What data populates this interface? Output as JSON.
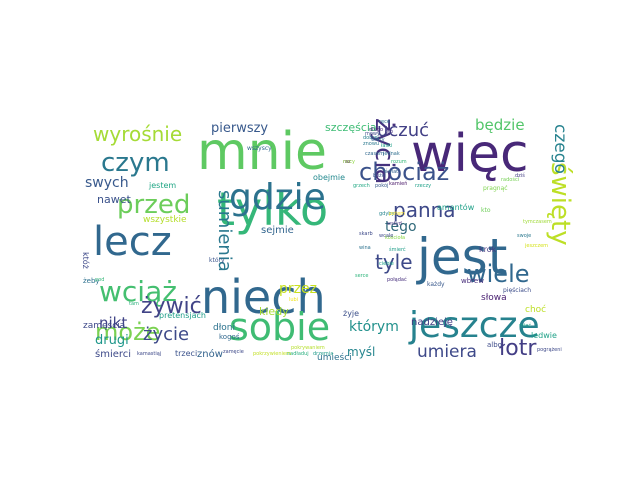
{
  "words": [
    {
      "text": "niech",
      "color": "#31688e"
    },
    {
      "text": "mnie",
      "color": "#5ec962"
    },
    {
      "text": "więc",
      "color": "#482878"
    },
    {
      "text": "jest",
      "color": "#31688e"
    },
    {
      "text": "tylko",
      "color": "#35b779"
    },
    {
      "text": "lecz",
      "color": "#31688e"
    },
    {
      "text": "gdzie",
      "color": "#2c728e"
    },
    {
      "text": "jeszcze",
      "color": "#26828e"
    },
    {
      "text": "sobie",
      "color": "#3fbc73"
    },
    {
      "text": "wciąż",
      "color": "#44bf70"
    },
    {
      "text": "czym",
      "color": "#2a788e"
    },
    {
      "text": "chociaż",
      "color": "#3b528b"
    },
    {
      "text": "życia",
      "color": "#46327e"
    },
    {
      "text": "wiele",
      "color": "#31688e"
    },
    {
      "text": "przed",
      "color": "#6ccd5a"
    },
    {
      "text": "może",
      "color": "#7ad151"
    },
    {
      "text": "panna",
      "color": "#3e4989"
    },
    {
      "text": "sumienia",
      "color": "#2a788e"
    },
    {
      "text": "święty",
      "color": "#bddf26"
    },
    {
      "text": "łotr",
      "color": "#433e85"
    },
    {
      "text": "wyrośnie",
      "color": "#a5db36"
    },
    {
      "text": "żywić",
      "color": "#414487"
    },
    {
      "text": "życie",
      "color": "#3e4a89"
    },
    {
      "text": "umiera",
      "color": "#3e4989"
    },
    {
      "text": "uczuć",
      "color": "#424086"
    },
    {
      "text": "czego",
      "color": "#26828e"
    },
    {
      "text": "będzie",
      "color": "#52c569"
    },
    {
      "text": "tyle",
      "color": "#3e4a89"
    },
    {
      "text": "nikt",
      "color": "#414487"
    },
    {
      "text": "przez",
      "color": "#c8e020"
    },
    {
      "text": "którym",
      "color": "#21918c"
    },
    {
      "text": "tego",
      "color": "#30697a"
    },
    {
      "text": "swych",
      "color": "#38598c"
    },
    {
      "text": "pierwszy",
      "color": "#38598c"
    },
    {
      "text": "drugi",
      "color": "#1f978b"
    },
    {
      "text": "myśl",
      "color": "#25858e"
    },
    {
      "text": "nawet",
      "color": "#3b528b"
    },
    {
      "text": "szczęścia",
      "color": "#3dbc74"
    },
    {
      "text": "kiedy",
      "color": "#a8db34"
    },
    {
      "text": "nadzieję",
      "color": "#433d84"
    },
    {
      "text": "zamęścia",
      "color": "#3e4989"
    },
    {
      "text": "śmierci",
      "color": "#3e4a89"
    },
    {
      "text": "sejmie",
      "color": "#32658e"
    },
    {
      "text": "umieści",
      "color": "#2d718e"
    },
    {
      "text": "znów",
      "color": "#33638d"
    },
    {
      "text": "słowa",
      "color": "#481f70"
    },
    {
      "text": "jestem",
      "color": "#21a685"
    },
    {
      "text": "amantów",
      "color": "#1fa088"
    },
    {
      "text": "pretensjach",
      "color": "#1f9e89"
    },
    {
      "text": "dłoni",
      "color": "#2c728e"
    },
    {
      "text": "obejmie",
      "color": "#23898e"
    },
    {
      "text": "choć",
      "color": "#bddf26"
    },
    {
      "text": "żyje",
      "color": "#3c4f8a"
    },
    {
      "text": "wszystkie",
      "color": "#b5de2b"
    },
    {
      "text": "krok",
      "color": "#453882"
    },
    {
      "text": "ledwie",
      "color": "#1fa187"
    },
    {
      "text": "trzeci",
      "color": "#3b528b"
    },
    {
      "text": "kogoś",
      "color": "#31688e"
    },
    {
      "text": "wszyscy",
      "color": "#31668e"
    },
    {
      "text": "któż",
      "color": "#3e4989"
    },
    {
      "text": "żeby",
      "color": "#2d708e"
    },
    {
      "text": "który",
      "color": "#3a548c"
    },
    {
      "text": "wbrew",
      "color": "#472d7b"
    },
    {
      "text": "każdy",
      "color": "#38588c"
    },
    {
      "text": "kto",
      "color": "#6ece58"
    },
    {
      "text": "pięściach",
      "color": "#3d4d8a"
    },
    {
      "text": "albo",
      "color": "#3e4c8a"
    },
    {
      "text": "pragnąć",
      "color": "#7fd34e"
    },
    {
      "text": "nadładuj",
      "color": "#29af7f"
    },
    {
      "text": "drzemia",
      "color": "#1f9a8a"
    },
    {
      "text": "połądać",
      "color": "#472f7d"
    },
    {
      "text": "rzeczy",
      "color": "#1fa088"
    },
    {
      "text": "raz",
      "color": "#440154"
    },
    {
      "text": "kamień",
      "color": "#481668"
    },
    {
      "text": "swoje",
      "color": "#2a788e"
    },
    {
      "text": "radości",
      "color": "#75d054"
    },
    {
      "text": "dobrej",
      "color": "#287c8e"
    },
    {
      "text": "tymczasem",
      "color": "#a0da39"
    },
    {
      "text": "jeszczem",
      "color": "#d5e21a"
    },
    {
      "text": "kościoła",
      "color": "#8bd646"
    },
    {
      "text": "lubi",
      "color": "#f1e51d"
    },
    {
      "text": "mieć",
      "color": "#1fa088"
    },
    {
      "text": "pod",
      "color": "#35b779"
    },
    {
      "text": "tam",
      "color": "#2db27d"
    },
    {
      "text": "ciebie",
      "color": "#1fa187"
    },
    {
      "text": "dziś",
      "color": "#433e85"
    },
    {
      "text": "jednak",
      "color": "#2e6e8e"
    },
    {
      "text": "oto",
      "color": "#46337f"
    },
    {
      "text": "serce",
      "color": "#2fb47c"
    },
    {
      "text": "czasem",
      "color": "#31688e"
    },
    {
      "text": "wina",
      "color": "#2c728e"
    },
    {
      "text": "nocy",
      "color": "#90d743"
    },
    {
      "text": "grzech",
      "color": "#22a884"
    },
    {
      "text": "wiary",
      "color": "#31668e"
    },
    {
      "text": "mowy",
      "color": "#3e4a89"
    },
    {
      "text": "znowu",
      "color": "#2a788e"
    },
    {
      "text": "łaski",
      "color": "#1fa088"
    },
    {
      "text": "gdyby",
      "color": "#25848e"
    },
    {
      "text": "skarb",
      "color": "#3e4a89"
    },
    {
      "text": "pokój",
      "color": "#38598c"
    },
    {
      "text": "wstyd",
      "color": "#46327e"
    },
    {
      "text": "ręce",
      "color": "#2c728e"
    },
    {
      "text": "długo",
      "color": "#482878"
    },
    {
      "text": "rozum",
      "color": "#35b779"
    },
    {
      "text": "potem",
      "color": "#fde725"
    },
    {
      "text": "bliżej",
      "color": "#3b528b"
    },
    {
      "text": "świat",
      "color": "#32648e"
    },
    {
      "text": "wcale",
      "color": "#3e4989"
    },
    {
      "text": "śmierć",
      "color": "#1f9e89"
    },
    {
      "text": "kamastiąj",
      "color": "#3e4989"
    },
    {
      "text": "zamęcie",
      "color": "#3e4989"
    },
    {
      "text": "pokrzywieniem",
      "color": "#c2df23"
    },
    {
      "text": "pokrywaniem",
      "color": "#b5de2b"
    },
    {
      "text": "pogrążeni",
      "color": "#3e4989"
    }
  ]
}
